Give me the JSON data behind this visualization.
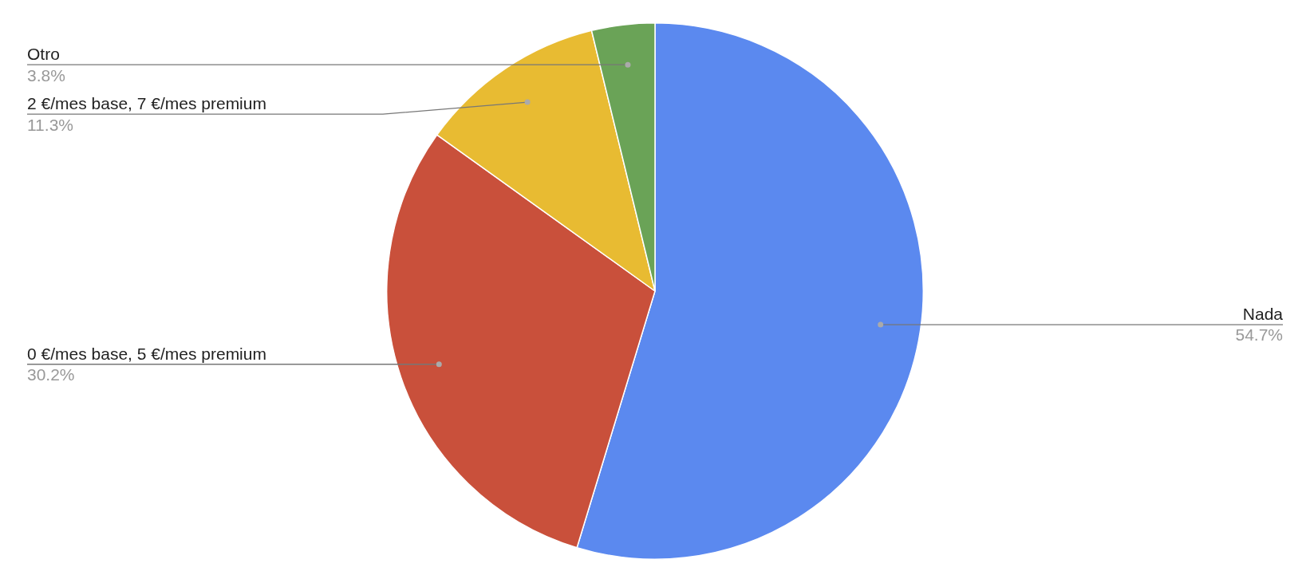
{
  "chart_data": {
    "type": "pie",
    "categories": [
      "Nada",
      "0 €/mes base, 5 €/mes premium",
      "2 €/mes base, 7 €/mes premium",
      "Otro"
    ],
    "values": [
      54.7,
      30.2,
      11.3,
      3.8
    ],
    "colors": [
      "#5b89ef",
      "#c9503b",
      "#e8bb32",
      "#6aa357"
    ],
    "value_labels": [
      "54.7%",
      "30.2%",
      "11.3%",
      "3.8%"
    ],
    "legend": false
  }
}
